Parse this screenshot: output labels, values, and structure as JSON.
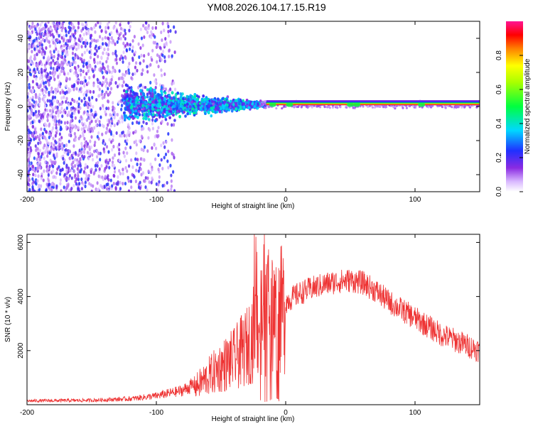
{
  "title": "YM08.2026.104.17.15.R19",
  "chart_data": [
    {
      "type": "heatmap",
      "name": "spectrogram",
      "xlabel": "Height of straight line (km)",
      "ylabel": "Frequency (Hz)",
      "xlim": [
        -200,
        150
      ],
      "ylim": [
        -50,
        50
      ],
      "xticks": [
        "-200",
        "-100",
        "0",
        "100"
      ],
      "xtick_values": [
        -200,
        -100,
        0,
        100
      ],
      "yticks": [
        "-40",
        "-20",
        "0",
        "20",
        "40"
      ],
      "ytick_values": [
        -40,
        -20,
        0,
        20,
        40
      ],
      "colorbar": {
        "label": "Normalized spectral amplitude",
        "range": [
          0,
          1
        ],
        "ticks": [
          "0.0",
          "0.2",
          "0.4",
          "0.6",
          "0.8"
        ],
        "tick_values": [
          0.0,
          0.2,
          0.4,
          0.6,
          0.8
        ]
      },
      "features": [
        {
          "desc": "broadband scattered noise",
          "x_range": [
            -200,
            -85
          ],
          "freq_range": [
            -50,
            50
          ],
          "amplitude": 0.05
        },
        {
          "desc": "tapering signal band",
          "x_range": [
            -120,
            -20
          ],
          "freq_range": [
            -15,
            15
          ],
          "amplitude": 0.3
        },
        {
          "desc": "narrow carrier line near 0 Hz",
          "x_range": [
            -20,
            150
          ],
          "freq_center": 0.5,
          "amplitude": 1.0
        }
      ]
    },
    {
      "type": "line",
      "name": "snr",
      "xlabel": "Height of straight line (km)",
      "ylabel": "SNR (10 * v/v)",
      "xlim": [
        -200,
        150
      ],
      "ylim": [
        0,
        6300
      ],
      "xticks": [
        "-200",
        "-100",
        "0",
        "100"
      ],
      "xtick_values": [
        -200,
        -100,
        0,
        100
      ],
      "yticks": [
        "2000",
        "4000",
        "6000"
      ],
      "ytick_values": [
        2000,
        4000,
        6000
      ],
      "color": "#ee3333",
      "envelope": {
        "x": [
          -200,
          -150,
          -120,
          -100,
          -80,
          -70,
          -60,
          -50,
          -40,
          -30,
          -25,
          -20,
          -10,
          0,
          10,
          20,
          30,
          40,
          50,
          60,
          70,
          80,
          90,
          100,
          110,
          120,
          130,
          140,
          150
        ],
        "y": [
          130,
          150,
          200,
          300,
          480,
          700,
          1100,
          1500,
          1800,
          2300,
          2800,
          3300,
          3600,
          3800,
          4100,
          4300,
          4450,
          4550,
          4600,
          4500,
          4200,
          3800,
          3500,
          3200,
          2900,
          2600,
          2400,
          2200,
          2000
        ]
      }
    }
  ]
}
